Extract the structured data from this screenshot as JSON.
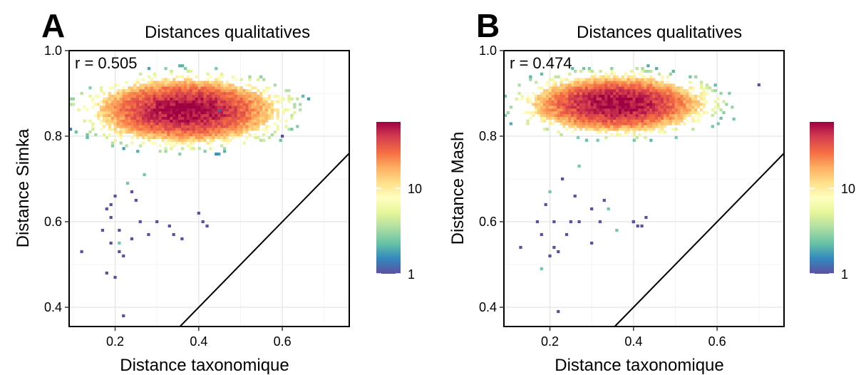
{
  "chart_data": [
    {
      "type": "heatmap",
      "panel_letter": "A",
      "title": "Distances qualitatives",
      "xlabel": "Distance taxonomique",
      "ylabel": "Distance Simka",
      "annotation": "r = 0.505",
      "xlim": [
        0.09,
        0.76
      ],
      "ylim": [
        0.355,
        1.0
      ],
      "xticks": [
        {
          "value": 0.2,
          "label": "0.2"
        },
        {
          "value": 0.4,
          "label": "0.4"
        },
        {
          "value": 0.6,
          "label": "0.6"
        }
      ],
      "yticks": [
        {
          "value": 0.4,
          "label": "0.4"
        },
        {
          "value": 0.6,
          "label": "0.6"
        },
        {
          "value": 0.8,
          "label": "0.8"
        },
        {
          "value": 1.0,
          "label": "1.0"
        }
      ],
      "grid": true,
      "reference_line": "y = x",
      "density_blob": {
        "center": [
          0.37,
          0.86
        ],
        "spread": [
          0.115,
          0.04
        ],
        "peak_count": 60
      },
      "sparse_points": [
        [
          0.12,
          0.53
        ],
        [
          0.18,
          0.48
        ],
        [
          0.19,
          0.64
        ],
        [
          0.21,
          0.53
        ],
        [
          0.22,
          0.52
        ],
        [
          0.24,
          0.56
        ],
        [
          0.26,
          0.6
        ],
        [
          0.28,
          0.57
        ],
        [
          0.3,
          0.6
        ],
        [
          0.34,
          0.57
        ],
        [
          0.4,
          0.62
        ],
        [
          0.41,
          0.6
        ],
        [
          0.42,
          0.59
        ],
        [
          0.17,
          0.58
        ],
        [
          0.2,
          0.66
        ],
        [
          0.24,
          0.67
        ],
        [
          0.27,
          0.71
        ],
        [
          0.23,
          0.69
        ],
        [
          0.22,
          0.38
        ],
        [
          0.18,
          0.63
        ],
        [
          0.19,
          0.55
        ],
        [
          0.21,
          0.58
        ],
        [
          0.25,
          0.65
        ],
        [
          0.33,
          0.59
        ],
        [
          0.36,
          0.56
        ],
        [
          0.21,
          0.55
        ],
        [
          0.2,
          0.47
        ],
        [
          0.19,
          0.61
        ],
        [
          0.45,
          0.86
        ],
        [
          0.6,
          0.8
        ]
      ],
      "colorbar": {
        "label_ticks": [
          {
            "value": 1,
            "label": "1"
          },
          {
            "value": 10,
            "label": "10"
          }
        ],
        "max": 60,
        "scale": "log",
        "palette": "Spectral"
      },
      "colors": [
        "#9e0142",
        "#d53e4f",
        "#f46d43",
        "#fdae61",
        "#fee08b",
        "#ffffbf",
        "#e6f598",
        "#abdda4",
        "#66c2a5",
        "#3288bd",
        "#5e4fa2"
      ]
    },
    {
      "type": "heatmap",
      "panel_letter": "B",
      "title": "Distances qualitatives",
      "xlabel": "Distance taxonomique",
      "ylabel": "Distance Mash",
      "annotation": "r = 0.474",
      "xlim": [
        0.09,
        0.76
      ],
      "ylim": [
        0.355,
        1.0
      ],
      "xticks": [
        {
          "value": 0.2,
          "label": "0.2"
        },
        {
          "value": 0.4,
          "label": "0.4"
        },
        {
          "value": 0.6,
          "label": "0.6"
        }
      ],
      "yticks": [
        {
          "value": 0.4,
          "label": "0.4"
        },
        {
          "value": 0.6,
          "label": "0.6"
        },
        {
          "value": 0.8,
          "label": "0.8"
        },
        {
          "value": 1.0,
          "label": "1.0"
        }
      ],
      "grid": true,
      "reference_line": "y = x",
      "density_blob": {
        "center": [
          0.36,
          0.875
        ],
        "spread": [
          0.11,
          0.035
        ],
        "peak_count": 60
      },
      "sparse_points": [
        [
          0.13,
          0.54
        ],
        [
          0.18,
          0.49
        ],
        [
          0.19,
          0.64
        ],
        [
          0.21,
          0.54
        ],
        [
          0.22,
          0.53
        ],
        [
          0.24,
          0.57
        ],
        [
          0.25,
          0.6
        ],
        [
          0.27,
          0.6
        ],
        [
          0.3,
          0.55
        ],
        [
          0.32,
          0.6
        ],
        [
          0.34,
          0.63
        ],
        [
          0.36,
          0.58
        ],
        [
          0.4,
          0.6
        ],
        [
          0.41,
          0.59
        ],
        [
          0.42,
          0.59
        ],
        [
          0.43,
          0.61
        ],
        [
          0.2,
          0.67
        ],
        [
          0.23,
          0.7
        ],
        [
          0.27,
          0.73
        ],
        [
          0.3,
          0.63
        ],
        [
          0.22,
          0.39
        ],
        [
          0.18,
          0.57
        ],
        [
          0.2,
          0.52
        ],
        [
          0.26,
          0.66
        ],
        [
          0.4,
          0.6
        ],
        [
          0.17,
          0.6
        ],
        [
          0.21,
          0.6
        ],
        [
          0.64,
          0.84
        ],
        [
          0.7,
          0.92
        ],
        [
          0.33,
          0.65
        ]
      ],
      "colorbar": {
        "label_ticks": [
          {
            "value": 1,
            "label": "1"
          },
          {
            "value": 10,
            "label": "10"
          }
        ],
        "max": 60,
        "scale": "log",
        "palette": "Spectral"
      },
      "colors": [
        "#9e0142",
        "#d53e4f",
        "#f46d43",
        "#fdae61",
        "#fee08b",
        "#ffffbf",
        "#e6f598",
        "#abdda4",
        "#66c2a5",
        "#3288bd",
        "#5e4fa2"
      ]
    }
  ]
}
